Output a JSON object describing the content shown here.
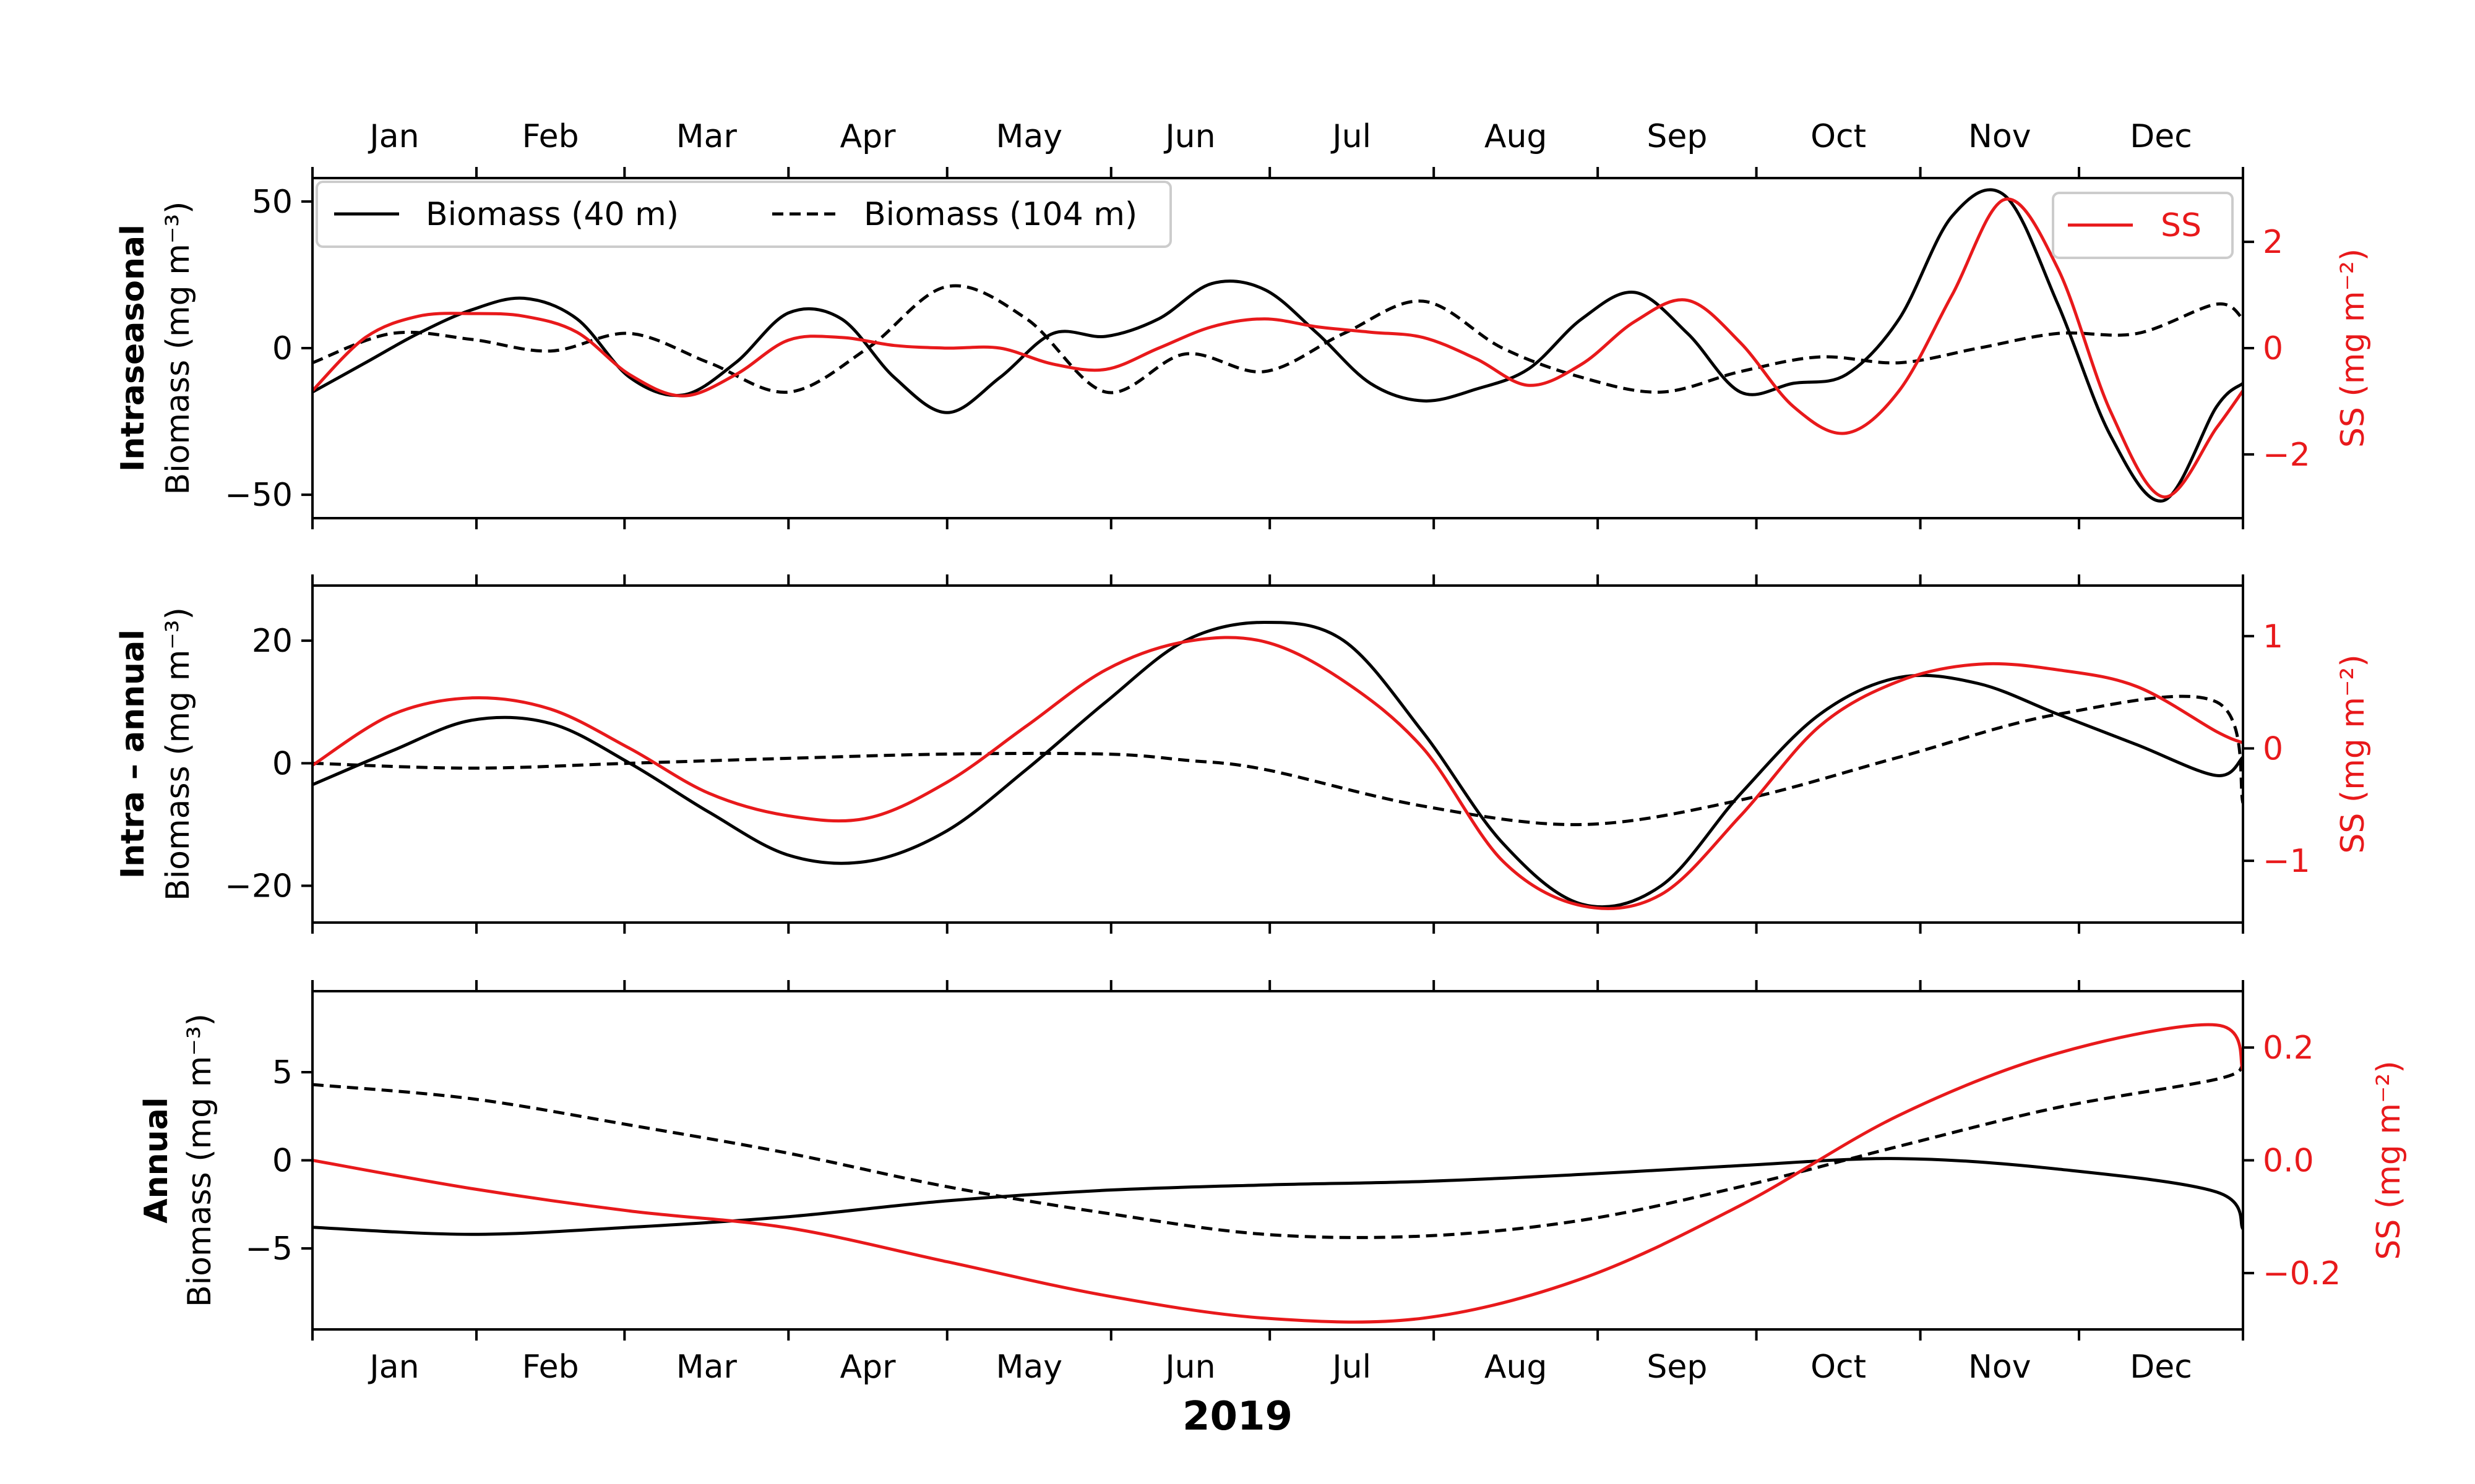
{
  "chart_data": [
    {
      "type": "line",
      "panel": "Intraseasonal",
      "row_title": "Intraseasonal",
      "ylabel_left": "Biomass (mg m⁻³)",
      "ylabel_right": "SS (mg m⁻²)",
      "left_ylim": [
        -58,
        58
      ],
      "right_ylim": [
        -3.2,
        3.2
      ],
      "left_ticks": [
        -50,
        0,
        50
      ],
      "left_tick_labels": [
        "−50",
        "0",
        "50"
      ],
      "right_ticks": [
        -2,
        0,
        2
      ],
      "right_tick_labels": [
        "−2",
        "0",
        "2"
      ],
      "legend_left_placement": "upper-left",
      "legend_right_placement": "upper-right",
      "series": [
        {
          "name": "Biomass (40 m)",
          "axis": "left",
          "color": "#000000",
          "dash": "solid",
          "x": [
            0,
            10,
            20,
            30,
            40,
            50,
            60,
            70,
            80,
            90,
            100,
            110,
            120,
            130,
            140,
            150,
            160,
            170,
            180,
            190,
            200,
            210,
            220,
            230,
            240,
            250,
            260,
            270,
            280,
            290,
            300,
            310,
            320,
            330,
            340,
            350,
            360,
            365
          ],
          "y": [
            -15,
            -5,
            5,
            13,
            17,
            10,
            -10,
            -16,
            -5,
            12,
            10,
            -10,
            -22,
            -10,
            5,
            4,
            10,
            22,
            20,
            5,
            -12,
            -18,
            -14,
            -7,
            10,
            19,
            5,
            -15,
            -12,
            -9,
            10,
            45,
            52,
            15,
            -30,
            -52,
            -20,
            -12
          ]
        },
        {
          "name": "Biomass (104 m)",
          "axis": "left",
          "color": "#000000",
          "dash": "dashed",
          "x": [
            0,
            15,
            30,
            45,
            60,
            75,
            90,
            105,
            120,
            135,
            150,
            165,
            180,
            195,
            210,
            225,
            240,
            255,
            270,
            285,
            300,
            315,
            330,
            345,
            360,
            365
          ],
          "y": [
            -5,
            5,
            3,
            -1,
            5,
            -5,
            -15,
            0,
            21,
            10,
            -15,
            -2,
            -8,
            5,
            16,
            0,
            -10,
            -15,
            -8,
            -3,
            -5,
            0,
            5,
            5,
            15,
            10
          ]
        },
        {
          "name": "SS",
          "axis": "right",
          "color": "#e8191b",
          "dash": "solid",
          "x": [
            0,
            10,
            20,
            30,
            40,
            50,
            60,
            70,
            80,
            90,
            100,
            110,
            120,
            130,
            140,
            150,
            160,
            170,
            180,
            190,
            200,
            210,
            220,
            230,
            240,
            250,
            260,
            270,
            280,
            290,
            300,
            310,
            320,
            330,
            340,
            350,
            360,
            365
          ],
          "y": [
            -0.8,
            0.2,
            0.6,
            0.65,
            0.6,
            0.3,
            -0.5,
            -0.9,
            -0.5,
            0.15,
            0.2,
            0.05,
            0,
            0,
            -0.3,
            -0.4,
            0,
            0.4,
            0.55,
            0.4,
            0.3,
            0.2,
            -0.2,
            -0.7,
            -0.3,
            0.5,
            0.9,
            0.1,
            -1.1,
            -1.6,
            -0.8,
            1.0,
            2.8,
            1.5,
            -1.2,
            -2.8,
            -1.5,
            -0.8
          ]
        }
      ]
    },
    {
      "type": "line",
      "panel": "Intra-annual",
      "row_title": "Intra – annual",
      "ylabel_left": "Biomass (mg m⁻³)",
      "ylabel_right": "SS (mg m⁻²)",
      "left_ylim": [
        -26,
        29
      ],
      "right_ylim": [
        -1.55,
        1.45
      ],
      "left_ticks": [
        -20,
        0,
        20
      ],
      "left_tick_labels": [
        "−20",
        "0",
        "20"
      ],
      "right_ticks": [
        -1,
        0,
        1
      ],
      "right_tick_labels": [
        "−1",
        "0",
        "1"
      ],
      "series": [
        {
          "name": "Biomass (40 m)",
          "axis": "left",
          "color": "#000000",
          "dash": "solid",
          "x": [
            0,
            15,
            30,
            45,
            60,
            75,
            90,
            105,
            120,
            135,
            150,
            165,
            180,
            195,
            210,
            225,
            240,
            255,
            270,
            285,
            300,
            315,
            330,
            345,
            360,
            365
          ],
          "y": [
            -3.5,
            2,
            7,
            6.5,
            0,
            -8,
            -15,
            -16,
            -11,
            -1,
            10,
            20,
            23,
            20,
            5,
            -13,
            -23,
            -20,
            -5,
            8,
            14,
            13,
            8,
            3,
            -2,
            1
          ]
        },
        {
          "name": "Biomass (104 m)",
          "axis": "left",
          "color": "#000000",
          "dash": "dashed",
          "x": [
            0,
            30,
            60,
            90,
            120,
            150,
            165,
            180,
            210,
            240,
            270,
            300,
            330,
            360,
            365
          ],
          "y": [
            0,
            -0.8,
            0,
            0.8,
            1.5,
            1.5,
            0.5,
            -1,
            -7,
            -10,
            -6,
            1,
            8,
            10,
            -6.5
          ]
        },
        {
          "name": "SS",
          "axis": "right",
          "color": "#e8191b",
          "dash": "solid",
          "x": [
            0,
            15,
            30,
            45,
            60,
            75,
            90,
            105,
            120,
            135,
            150,
            165,
            180,
            195,
            210,
            225,
            240,
            255,
            270,
            285,
            300,
            315,
            330,
            345,
            360,
            365
          ],
          "y": [
            -0.15,
            0.3,
            0.45,
            0.35,
            0,
            -0.4,
            -0.6,
            -0.62,
            -0.3,
            0.2,
            0.7,
            0.95,
            0.95,
            0.6,
            0,
            -1.0,
            -1.4,
            -1.3,
            -0.6,
            0.2,
            0.6,
            0.75,
            0.7,
            0.55,
            0.15,
            0.05
          ]
        }
      ]
    },
    {
      "type": "line",
      "panel": "Annual",
      "row_title": "Annual",
      "ylabel_left": "Biomass (mg m⁻³)",
      "ylabel_right": "SS (mg m⁻²)",
      "left_ylim": [
        -9.6,
        9.6
      ],
      "right_ylim": [
        -0.3,
        0.3
      ],
      "left_ticks": [
        -5,
        0,
        5
      ],
      "left_tick_labels": [
        "−5",
        "0",
        "5"
      ],
      "right_ticks": [
        -0.2,
        0,
        0.2
      ],
      "right_tick_labels": [
        "−0.2",
        "0.0",
        "0.2"
      ],
      "series": [
        {
          "name": "Biomass (40 m)",
          "axis": "left",
          "color": "#000000",
          "dash": "solid",
          "x": [
            0,
            30,
            60,
            90,
            120,
            150,
            180,
            210,
            240,
            270,
            300,
            330,
            360,
            365
          ],
          "y": [
            -3.8,
            -4.2,
            -3.8,
            -3.2,
            -2.3,
            -1.7,
            -1.4,
            -1.2,
            -0.8,
            -0.3,
            0.1,
            -0.5,
            -1.8,
            -3.9
          ]
        },
        {
          "name": "Biomass (104 m)",
          "axis": "left",
          "color": "#000000",
          "dash": "dashed",
          "x": [
            0,
            30,
            60,
            90,
            120,
            150,
            180,
            210,
            240,
            270,
            300,
            330,
            360,
            365
          ],
          "y": [
            4.3,
            3.5,
            2.0,
            0.4,
            -1.5,
            -3.0,
            -4.2,
            -4.3,
            -3.4,
            -1.5,
            0.8,
            3.0,
            4.6,
            5.4
          ]
        },
        {
          "name": "SS",
          "axis": "right",
          "color": "#e8191b",
          "dash": "solid",
          "x": [
            0,
            30,
            60,
            90,
            120,
            150,
            180,
            210,
            240,
            270,
            300,
            330,
            360,
            365
          ],
          "y": [
            0,
            -0.05,
            -0.09,
            -0.12,
            -0.18,
            -0.24,
            -0.28,
            -0.28,
            -0.21,
            -0.08,
            0.08,
            0.19,
            0.24,
            0.16
          ]
        }
      ]
    }
  ],
  "months": [
    "Jan",
    "Feb",
    "Mar",
    "Apr",
    "May",
    "Jun",
    "Jul",
    "Aug",
    "Sep",
    "Oct",
    "Nov",
    "Dec"
  ],
  "month_label_days": [
    15.5,
    45,
    74.5,
    105,
    135.5,
    166,
    196.5,
    227.5,
    258,
    288.5,
    319,
    349.5
  ],
  "month_tick_days": [
    0,
    31,
    59,
    90,
    120,
    151,
    181,
    212,
    243,
    273,
    304,
    334,
    365
  ],
  "xlim_days": [
    0,
    365
  ],
  "xlabel": "2019",
  "colors": {
    "biomass": "#000000",
    "ss": "#e8191b"
  }
}
